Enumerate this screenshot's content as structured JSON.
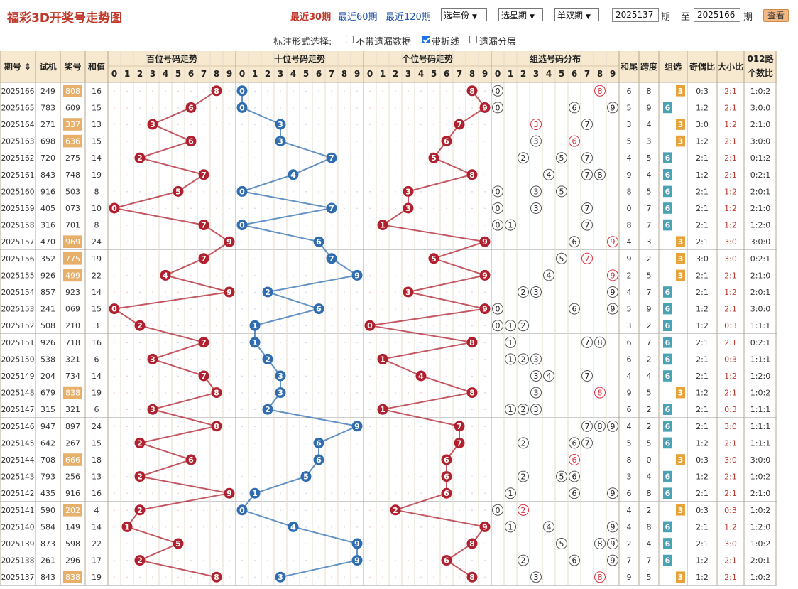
{
  "header": {
    "title": "福彩3D开奖号走势图",
    "nav": [
      "最近30期",
      "最近60期",
      "最近120期"
    ],
    "selects": [
      "选年份",
      "选星期",
      "单双期"
    ],
    "from": "2025137",
    "period1": "期",
    "to_label": "至",
    "to": "2025166",
    "period2": "期",
    "view_button": "查看"
  },
  "options": {
    "title": "标注形式选择:",
    "items": [
      {
        "label": "不带遗漏数据",
        "checked": false
      },
      {
        "label": "带折线",
        "checked": true
      },
      {
        "label": "遗漏分层",
        "checked": false
      }
    ]
  },
  "table": {
    "headers": {
      "issue": "期号",
      "test": "试机",
      "prize": "奖号",
      "sum": "和值",
      "hundreds": "百位号码走势",
      "tens": "十位号码走势",
      "units": "个位号码走势",
      "group": "组选号码分布",
      "tail": "和尾",
      "span": "跨度",
      "type": "组选",
      "odd_even": "奇偶比",
      "big_small": "大小比",
      "road": "012路",
      "road2": "个数比"
    },
    "digits": [
      "0",
      "1",
      "2",
      "3",
      "4",
      "5",
      "6",
      "7",
      "8",
      "9"
    ],
    "group_labels": [
      "组三",
      "组六"
    ],
    "rows": [
      {
        "issue": "2025166",
        "test": "249",
        "prize": "808",
        "sum": "16",
        "tail": "6",
        "span": "8",
        "type": "3",
        "oe": "0:3",
        "bs": "2:1",
        "road": "1:0:2"
      },
      {
        "issue": "2025165",
        "test": "783",
        "prize": "609",
        "sum": "15",
        "tail": "5",
        "span": "9",
        "type": "6",
        "oe": "1:2",
        "bs": "2:1",
        "road": "3:0:0"
      },
      {
        "issue": "2025164",
        "test": "271",
        "prize": "337",
        "sum": "13",
        "tail": "3",
        "span": "4",
        "type": "3",
        "oe": "3:0",
        "bs": "1:2",
        "road": "2:1:0"
      },
      {
        "issue": "2025163",
        "test": "698",
        "prize": "636",
        "sum": "15",
        "tail": "5",
        "span": "3",
        "type": "3",
        "oe": "1:2",
        "bs": "2:1",
        "road": "3:0:0"
      },
      {
        "issue": "2025162",
        "test": "720",
        "prize": "275",
        "sum": "14",
        "tail": "4",
        "span": "5",
        "type": "6",
        "oe": "2:1",
        "bs": "2:1",
        "road": "0:1:2"
      },
      {
        "issue": "2025161",
        "test": "843",
        "prize": "748",
        "sum": "19",
        "tail": "9",
        "span": "4",
        "type": "6",
        "oe": "1:2",
        "bs": "2:1",
        "road": "0:2:1"
      },
      {
        "issue": "2025160",
        "test": "916",
        "prize": "503",
        "sum": "8",
        "tail": "8",
        "span": "5",
        "type": "6",
        "oe": "2:1",
        "bs": "1:2",
        "road": "2:0:1"
      },
      {
        "issue": "2025159",
        "test": "405",
        "prize": "073",
        "sum": "10",
        "tail": "0",
        "span": "7",
        "type": "6",
        "oe": "2:1",
        "bs": "1:2",
        "road": "2:1:0"
      },
      {
        "issue": "2025158",
        "test": "316",
        "prize": "701",
        "sum": "8",
        "tail": "8",
        "span": "7",
        "type": "6",
        "oe": "2:1",
        "bs": "1:2",
        "road": "1:2:0"
      },
      {
        "issue": "2025157",
        "test": "470",
        "prize": "969",
        "sum": "24",
        "tail": "4",
        "span": "3",
        "type": "3",
        "oe": "2:1",
        "bs": "3:0",
        "road": "3:0:0"
      },
      {
        "issue": "2025156",
        "test": "352",
        "prize": "775",
        "sum": "19",
        "tail": "9",
        "span": "2",
        "type": "3",
        "oe": "3:0",
        "bs": "3:0",
        "road": "0:2:1"
      },
      {
        "issue": "2025155",
        "test": "926",
        "prize": "499",
        "sum": "22",
        "tail": "2",
        "span": "5",
        "type": "3",
        "oe": "2:1",
        "bs": "2:1",
        "road": "2:1:0"
      },
      {
        "issue": "2025154",
        "test": "857",
        "prize": "923",
        "sum": "14",
        "tail": "4",
        "span": "7",
        "type": "6",
        "oe": "2:1",
        "bs": "1:2",
        "road": "2:0:1"
      },
      {
        "issue": "2025153",
        "test": "241",
        "prize": "069",
        "sum": "15",
        "tail": "5",
        "span": "9",
        "type": "6",
        "oe": "1:2",
        "bs": "2:1",
        "road": "3:0:0"
      },
      {
        "issue": "2025152",
        "test": "508",
        "prize": "210",
        "sum": "3",
        "tail": "3",
        "span": "2",
        "type": "6",
        "oe": "1:2",
        "bs": "0:3",
        "road": "1:1:1"
      },
      {
        "issue": "2025151",
        "test": "926",
        "prize": "718",
        "sum": "16",
        "tail": "6",
        "span": "7",
        "type": "6",
        "oe": "2:1",
        "bs": "2:1",
        "road": "0:2:1"
      },
      {
        "issue": "2025150",
        "test": "538",
        "prize": "321",
        "sum": "6",
        "tail": "6",
        "span": "2",
        "type": "6",
        "oe": "2:1",
        "bs": "0:3",
        "road": "1:1:1"
      },
      {
        "issue": "2025149",
        "test": "204",
        "prize": "734",
        "sum": "14",
        "tail": "4",
        "span": "4",
        "type": "6",
        "oe": "2:1",
        "bs": "1:2",
        "road": "1:2:0"
      },
      {
        "issue": "2025148",
        "test": "679",
        "prize": "838",
        "sum": "19",
        "tail": "9",
        "span": "5",
        "type": "3",
        "oe": "1:2",
        "bs": "2:1",
        "road": "1:0:2"
      },
      {
        "issue": "2025147",
        "test": "315",
        "prize": "321",
        "sum": "6",
        "tail": "6",
        "span": "2",
        "type": "6",
        "oe": "2:1",
        "bs": "0:3",
        "road": "1:1:1"
      },
      {
        "issue": "2025146",
        "test": "947",
        "prize": "897",
        "sum": "24",
        "tail": "4",
        "span": "2",
        "type": "6",
        "oe": "2:1",
        "bs": "3:0",
        "road": "1:1:1"
      },
      {
        "issue": "2025145",
        "test": "642",
        "prize": "267",
        "sum": "15",
        "tail": "5",
        "span": "5",
        "type": "6",
        "oe": "1:2",
        "bs": "2:1",
        "road": "1:1:1"
      },
      {
        "issue": "2025144",
        "test": "708",
        "prize": "666",
        "sum": "18",
        "tail": "8",
        "span": "0",
        "type": "3",
        "oe": "0:3",
        "bs": "3:0",
        "road": "3:0:0"
      },
      {
        "issue": "2025143",
        "test": "793",
        "prize": "256",
        "sum": "13",
        "tail": "3",
        "span": "4",
        "type": "6",
        "oe": "1:2",
        "bs": "2:1",
        "road": "1:0:2"
      },
      {
        "issue": "2025142",
        "test": "435",
        "prize": "916",
        "sum": "16",
        "tail": "6",
        "span": "8",
        "type": "6",
        "oe": "2:1",
        "bs": "2:1",
        "road": "2:1:0"
      },
      {
        "issue": "2025141",
        "test": "590",
        "prize": "202",
        "sum": "4",
        "tail": "4",
        "span": "2",
        "type": "3",
        "oe": "0:3",
        "bs": "0:3",
        "road": "1:0:2"
      },
      {
        "issue": "2025140",
        "test": "584",
        "prize": "149",
        "sum": "14",
        "tail": "4",
        "span": "8",
        "type": "6",
        "oe": "2:1",
        "bs": "1:2",
        "road": "1:2:0"
      },
      {
        "issue": "2025139",
        "test": "873",
        "prize": "598",
        "sum": "22",
        "tail": "2",
        "span": "4",
        "type": "6",
        "oe": "2:1",
        "bs": "3:0",
        "road": "1:0:2"
      },
      {
        "issue": "2025138",
        "test": "261",
        "prize": "296",
        "sum": "17",
        "tail": "7",
        "span": "7",
        "type": "6",
        "oe": "1:2",
        "bs": "2:1",
        "road": "2:0:1"
      },
      {
        "issue": "2025137",
        "test": "843",
        "prize": "838",
        "sum": "19",
        "tail": "9",
        "span": "5",
        "type": "3",
        "oe": "1:2",
        "bs": "2:1",
        "road": "1:0:2"
      }
    ]
  },
  "colors": {
    "red": "#b0202e",
    "blue": "#2f6db0",
    "header_bg": "#f7e9cf",
    "group3": "#e8a23a",
    "group6": "#4aa3b5"
  }
}
